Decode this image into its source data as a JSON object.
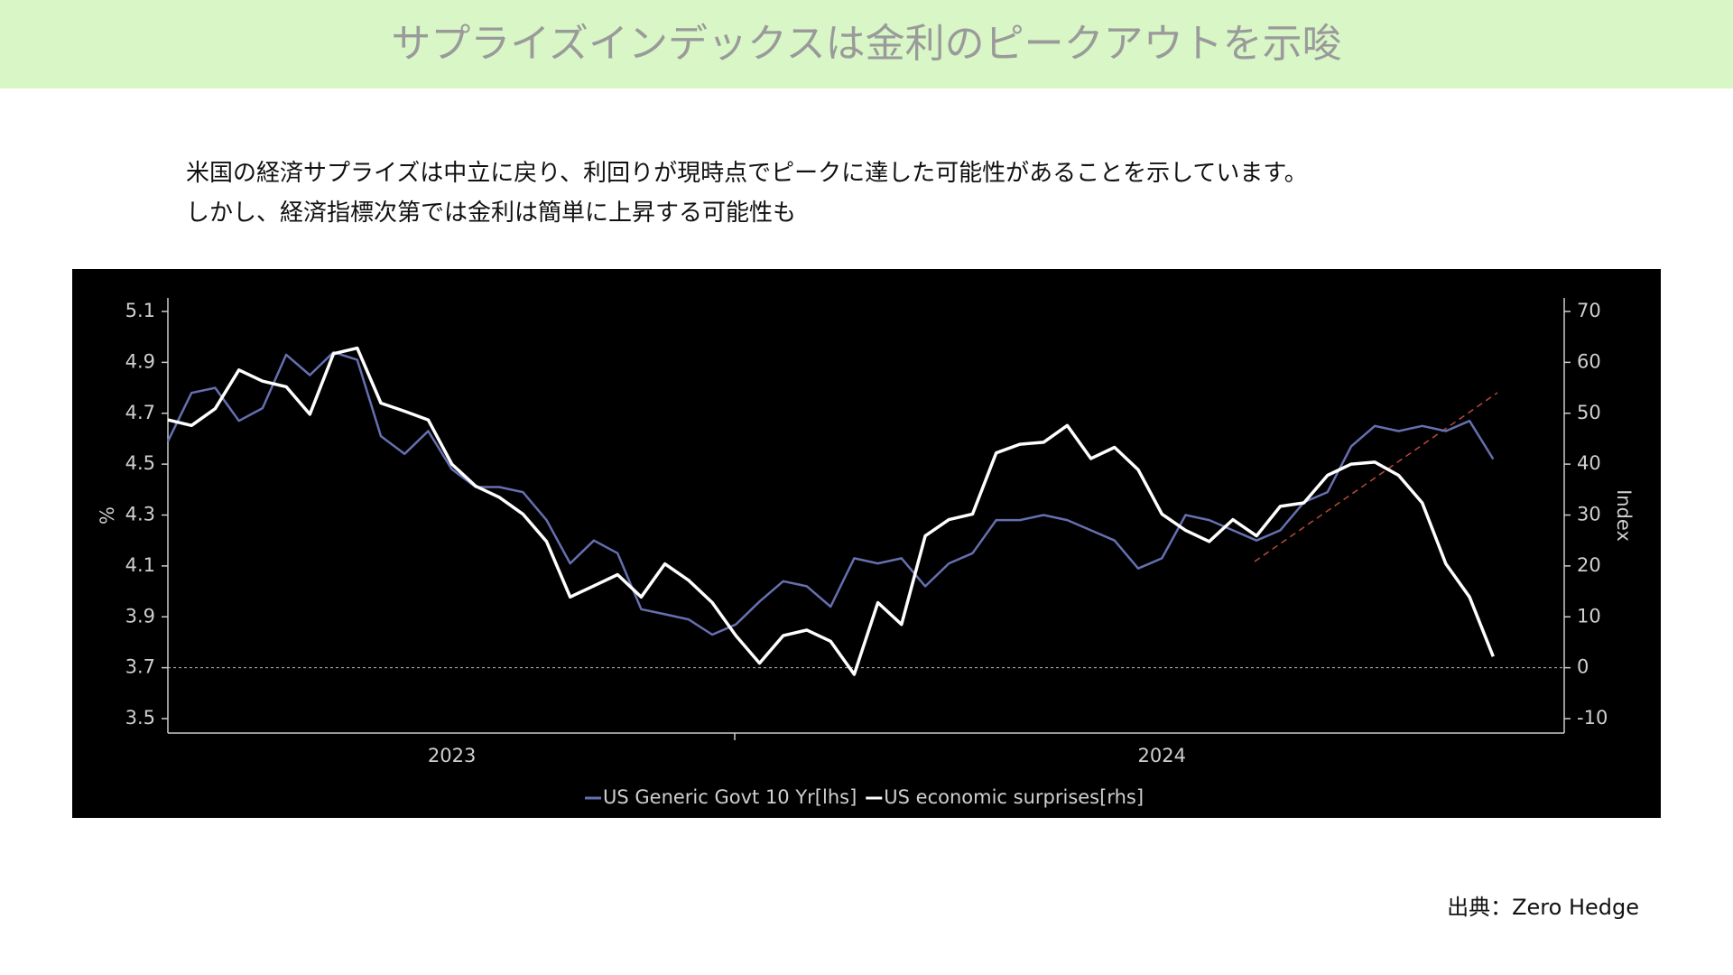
{
  "header": {
    "title": "サプライズインデックスは金利のピークアウトを示唆"
  },
  "body": {
    "lines": [
      "米国の経済サプライズは中立に戻り、利回りが現時点でピークに達した可能性があることを示しています。",
      "しかし、経済指標次第では金利は簡単に上昇する可能性も"
    ]
  },
  "source": "出典：Zero Hedge",
  "chart_data": {
    "type": "line",
    "ylabel": "%",
    "y2label": "Index",
    "categories": [
      null,
      null,
      null,
      null,
      null,
      null,
      null,
      null,
      null,
      null,
      null,
      null,
      "2023",
      null,
      null,
      null,
      null,
      null,
      null,
      null,
      null,
      null,
      null,
      null,
      null,
      null,
      null,
      null,
      null,
      null,
      null,
      null,
      null,
      null,
      null,
      null,
      null,
      null,
      null,
      null,
      null,
      null,
      "2024",
      null,
      null,
      null,
      null,
      null,
      null,
      null,
      null,
      null,
      null,
      null,
      null,
      null,
      null,
      null,
      null,
      null
    ],
    "series": [
      {
        "name": "US Generic Govt 10 Yr[lhs]",
        "color": "#6670b0",
        "axis": "y",
        "values": [
          4.59,
          4.78,
          4.8,
          4.67,
          4.72,
          4.93,
          4.85,
          4.94,
          4.91,
          4.61,
          4.54,
          4.63,
          4.48,
          4.41,
          4.41,
          4.39,
          4.28,
          4.11,
          4.2,
          4.15,
          3.93,
          3.91,
          3.89,
          3.83,
          3.87,
          3.96,
          4.04,
          4.02,
          3.94,
          4.13,
          4.11,
          4.13,
          4.02,
          4.11,
          4.15,
          4.28,
          4.28,
          4.3,
          4.28,
          4.24,
          4.2,
          4.09,
          4.13,
          4.3,
          4.28,
          4.24,
          4.2,
          4.24,
          4.35,
          4.39,
          4.57,
          4.65,
          4.63,
          4.65,
          4.63,
          4.67,
          4.52,
          null,
          null,
          null
        ]
      },
      {
        "name": "US economic surprises[rhs]",
        "color": "#ffffff",
        "axis": "y2",
        "values": [
          48.7,
          47.6,
          50.9,
          58.5,
          56.3,
          55.2,
          49.8,
          61.7,
          62.8,
          52.0,
          50.4,
          48.7,
          40.0,
          35.7,
          33.5,
          30.2,
          24.8,
          13.9,
          16.1,
          18.3,
          13.9,
          20.4,
          17.2,
          12.8,
          6.3,
          0.9,
          6.3,
          7.4,
          5.2,
          -1.3,
          12.8,
          8.5,
          25.9,
          29.1,
          30.2,
          42.2,
          43.9,
          44.3,
          47.6,
          41.1,
          43.3,
          38.9,
          30.2,
          27.0,
          24.8,
          29.1,
          25.9,
          31.7,
          32.4,
          37.8,
          40.0,
          40.4,
          37.8,
          32.4,
          20.4,
          13.9,
          2.2,
          null,
          null,
          null
        ]
      }
    ],
    "ylim": [
      3.5,
      5.1
    ],
    "yticks": [
      3.5,
      3.7,
      3.9,
      4.1,
      4.3,
      4.5,
      4.7,
      4.9,
      5.1
    ],
    "y2lim": [
      -10,
      70
    ],
    "y2ticks": [
      -10,
      0,
      10,
      20,
      30,
      40,
      50,
      60,
      70
    ],
    "reference_line": 3.7,
    "background": "#000000"
  }
}
